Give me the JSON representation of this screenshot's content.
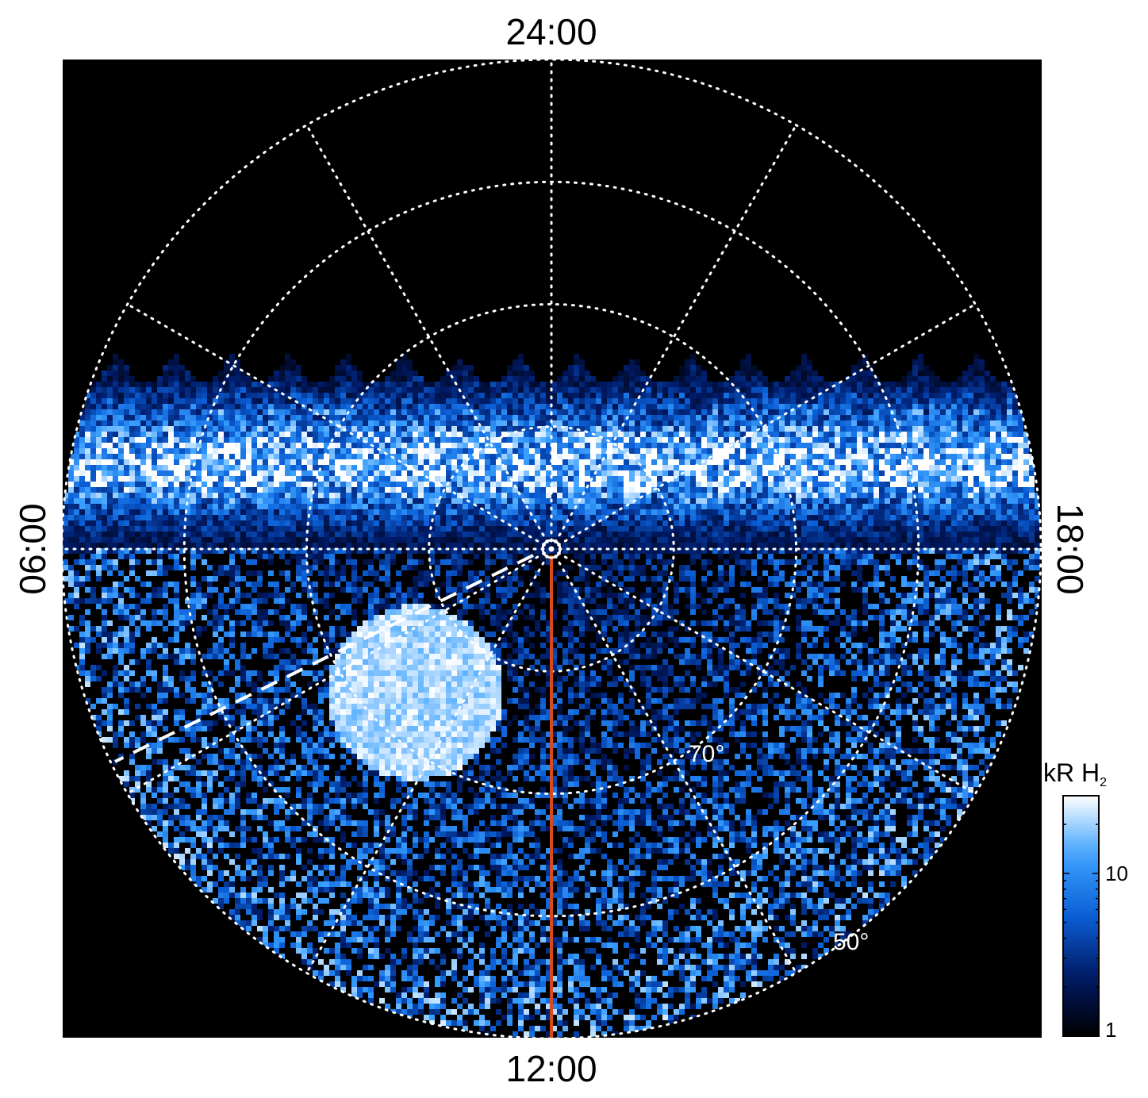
{
  "chart_data": {
    "type": "heatmap",
    "projection": "polar",
    "local_time_labels": {
      "top": "24:00",
      "bottom": "12:00",
      "left": "06:00",
      "right": "18:00"
    },
    "latitude_circles_deg": [
      80,
      70,
      60,
      50
    ],
    "latitude_labels": [
      {
        "text": "70°",
        "value": 70
      },
      {
        "text": "50°",
        "value": 50
      }
    ],
    "local_time_meridians_hours": [
      0,
      2,
      4,
      6,
      8,
      10,
      12,
      14,
      16,
      18,
      20,
      22
    ],
    "grid": true,
    "colorbar": {
      "label": "kR H₂",
      "label_main": "kR H",
      "label_sub": "2",
      "scale": "log",
      "range": [
        1,
        30
      ],
      "ticks": [
        {
          "value": 1,
          "label": "1"
        },
        {
          "value": 10,
          "label": "10"
        }
      ],
      "colors": [
        "#000000",
        "#001a66",
        "#0b5fd6",
        "#3aa0ff",
        "#ffffff"
      ]
    },
    "orbit_track": {
      "color": "#d84a1b",
      "local_time": "12:00"
    },
    "dashed_track": {
      "color": "#ffffff"
    },
    "auroral_oval": {
      "latitude_deg": 77,
      "intensity_kR": 25,
      "side": "nightside"
    }
  }
}
